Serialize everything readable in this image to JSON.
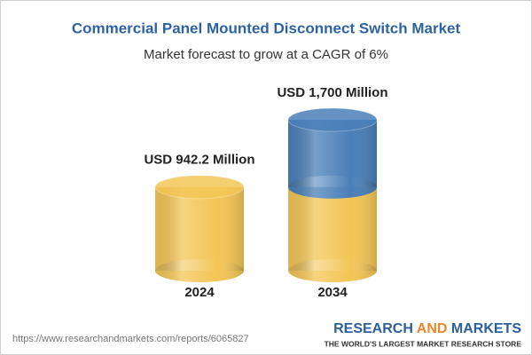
{
  "chart_data": {
    "type": "cylinder",
    "title": "Commercial Panel Mounted Disconnect Switch Market",
    "subtitle": "Market forecast to grow at a CAGR of 6%",
    "categories": [
      "2024",
      "2034"
    ],
    "values": [
      942.2,
      1700
    ],
    "value_labels": [
      "USD 942.2 Million",
      "USD 1,700 Million"
    ],
    "colors": [
      "#f3c556",
      "#4a7fb8"
    ]
  },
  "footer": {
    "url": "https://www.researchandmarkets.com/reports/6065827",
    "brand": [
      "RESEARCH",
      "AND",
      "MARKETS"
    ],
    "tagline": "THE WORLD'S LARGEST MARKET RESEARCH STORE"
  }
}
